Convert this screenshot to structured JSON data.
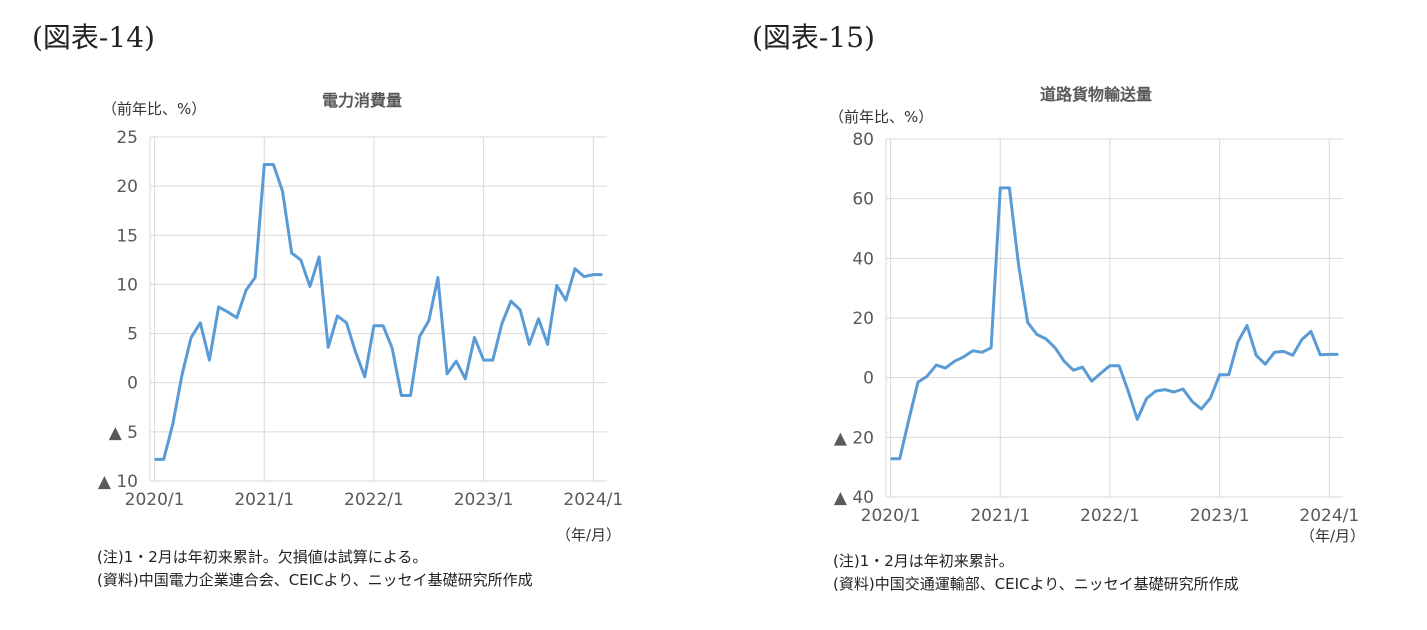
{
  "charts": [
    {
      "figure_label": "(図表-14)",
      "unit_label": "（前年比、%）",
      "period_label": "（年/月）",
      "notes": [
        "(注)1・2月は年初来累計。欠損値は試算による。",
        "(資料)中国電力企業連合会、CEICより、ニッセイ基礎研究所作成"
      ]
    },
    {
      "figure_label": "(図表-15)",
      "unit_label": "（前年比、%）",
      "period_label": "（年/月）",
      "notes": [
        "(注)1・2月は年初来累計。",
        "(資料)中国交通運輸部、CEICより、ニッセイ基礎研究所作成"
      ]
    }
  ],
  "chart_data": [
    {
      "type": "line",
      "title": "電力消費量",
      "ylabel": "（前年比、%）",
      "xlabel": "（年/月）",
      "ylim": [
        -10,
        25
      ],
      "yticks": [
        25,
        20,
        15,
        10,
        5,
        0,
        -5,
        -10
      ],
      "ytick_labels": [
        "25",
        "20",
        "15",
        "10",
        "5",
        "0",
        "▲ 5",
        "▲ 10"
      ],
      "xtick_labels": [
        "2020/1",
        "2021/1",
        "2022/1",
        "2023/1",
        "2024/1"
      ],
      "xtick_index": [
        0,
        12,
        24,
        36,
        48
      ],
      "grid": true,
      "line_color": "#5b9bd5",
      "series": [
        {
          "name": "電力消費量",
          "values": [
            -7.8,
            -7.8,
            -4.2,
            0.8,
            4.6,
            6.1,
            2.3,
            7.7,
            7.2,
            6.6,
            9.4,
            10.7,
            22.2,
            22.2,
            19.5,
            13.2,
            12.5,
            9.8,
            12.8,
            3.6,
            6.8,
            6.1,
            3.1,
            0.6,
            5.8,
            5.8,
            3.5,
            -1.3,
            -1.3,
            4.7,
            6.3,
            10.7,
            0.9,
            2.2,
            0.4,
            4.6,
            2.3,
            2.3,
            6.0,
            8.3,
            7.4,
            3.9,
            6.5,
            3.9,
            9.9,
            8.4,
            11.6,
            10.8,
            11.0,
            11.0
          ]
        }
      ]
    },
    {
      "type": "line",
      "title": "道路貨物輸送量",
      "ylabel": "（前年比、%）",
      "xlabel": "（年/月）",
      "ylim": [
        -40,
        80
      ],
      "yticks": [
        80,
        60,
        40,
        20,
        0,
        -20,
        -40
      ],
      "ytick_labels": [
        "80",
        "60",
        "40",
        "20",
        "0",
        "▲ 20",
        "▲ 40"
      ],
      "xtick_labels": [
        "2020/1",
        "2021/1",
        "2022/1",
        "2023/1",
        "2024/1"
      ],
      "xtick_index": [
        0,
        12,
        24,
        36,
        48
      ],
      "grid": true,
      "line_color": "#5b9bd5",
      "series": [
        {
          "name": "道路貨物輸送量",
          "values": [
            -27.2,
            -27.2,
            -14.0,
            -1.5,
            0.5,
            4.2,
            3.2,
            5.5,
            7.0,
            9.0,
            8.5,
            10.0,
            63.6,
            63.6,
            38.0,
            18.5,
            14.5,
            13.0,
            10.0,
            5.5,
            2.5,
            3.5,
            -1.2,
            1.5,
            4.0,
            4.0,
            -4.5,
            -14.0,
            -7.0,
            -4.5,
            -4.0,
            -4.8,
            -3.8,
            -8.0,
            -10.5,
            -6.8,
            1.0,
            1.0,
            12.0,
            17.5,
            7.5,
            4.5,
            8.5,
            8.8,
            7.5,
            12.8,
            15.5,
            7.7,
            7.8,
            7.8
          ]
        }
      ]
    }
  ]
}
